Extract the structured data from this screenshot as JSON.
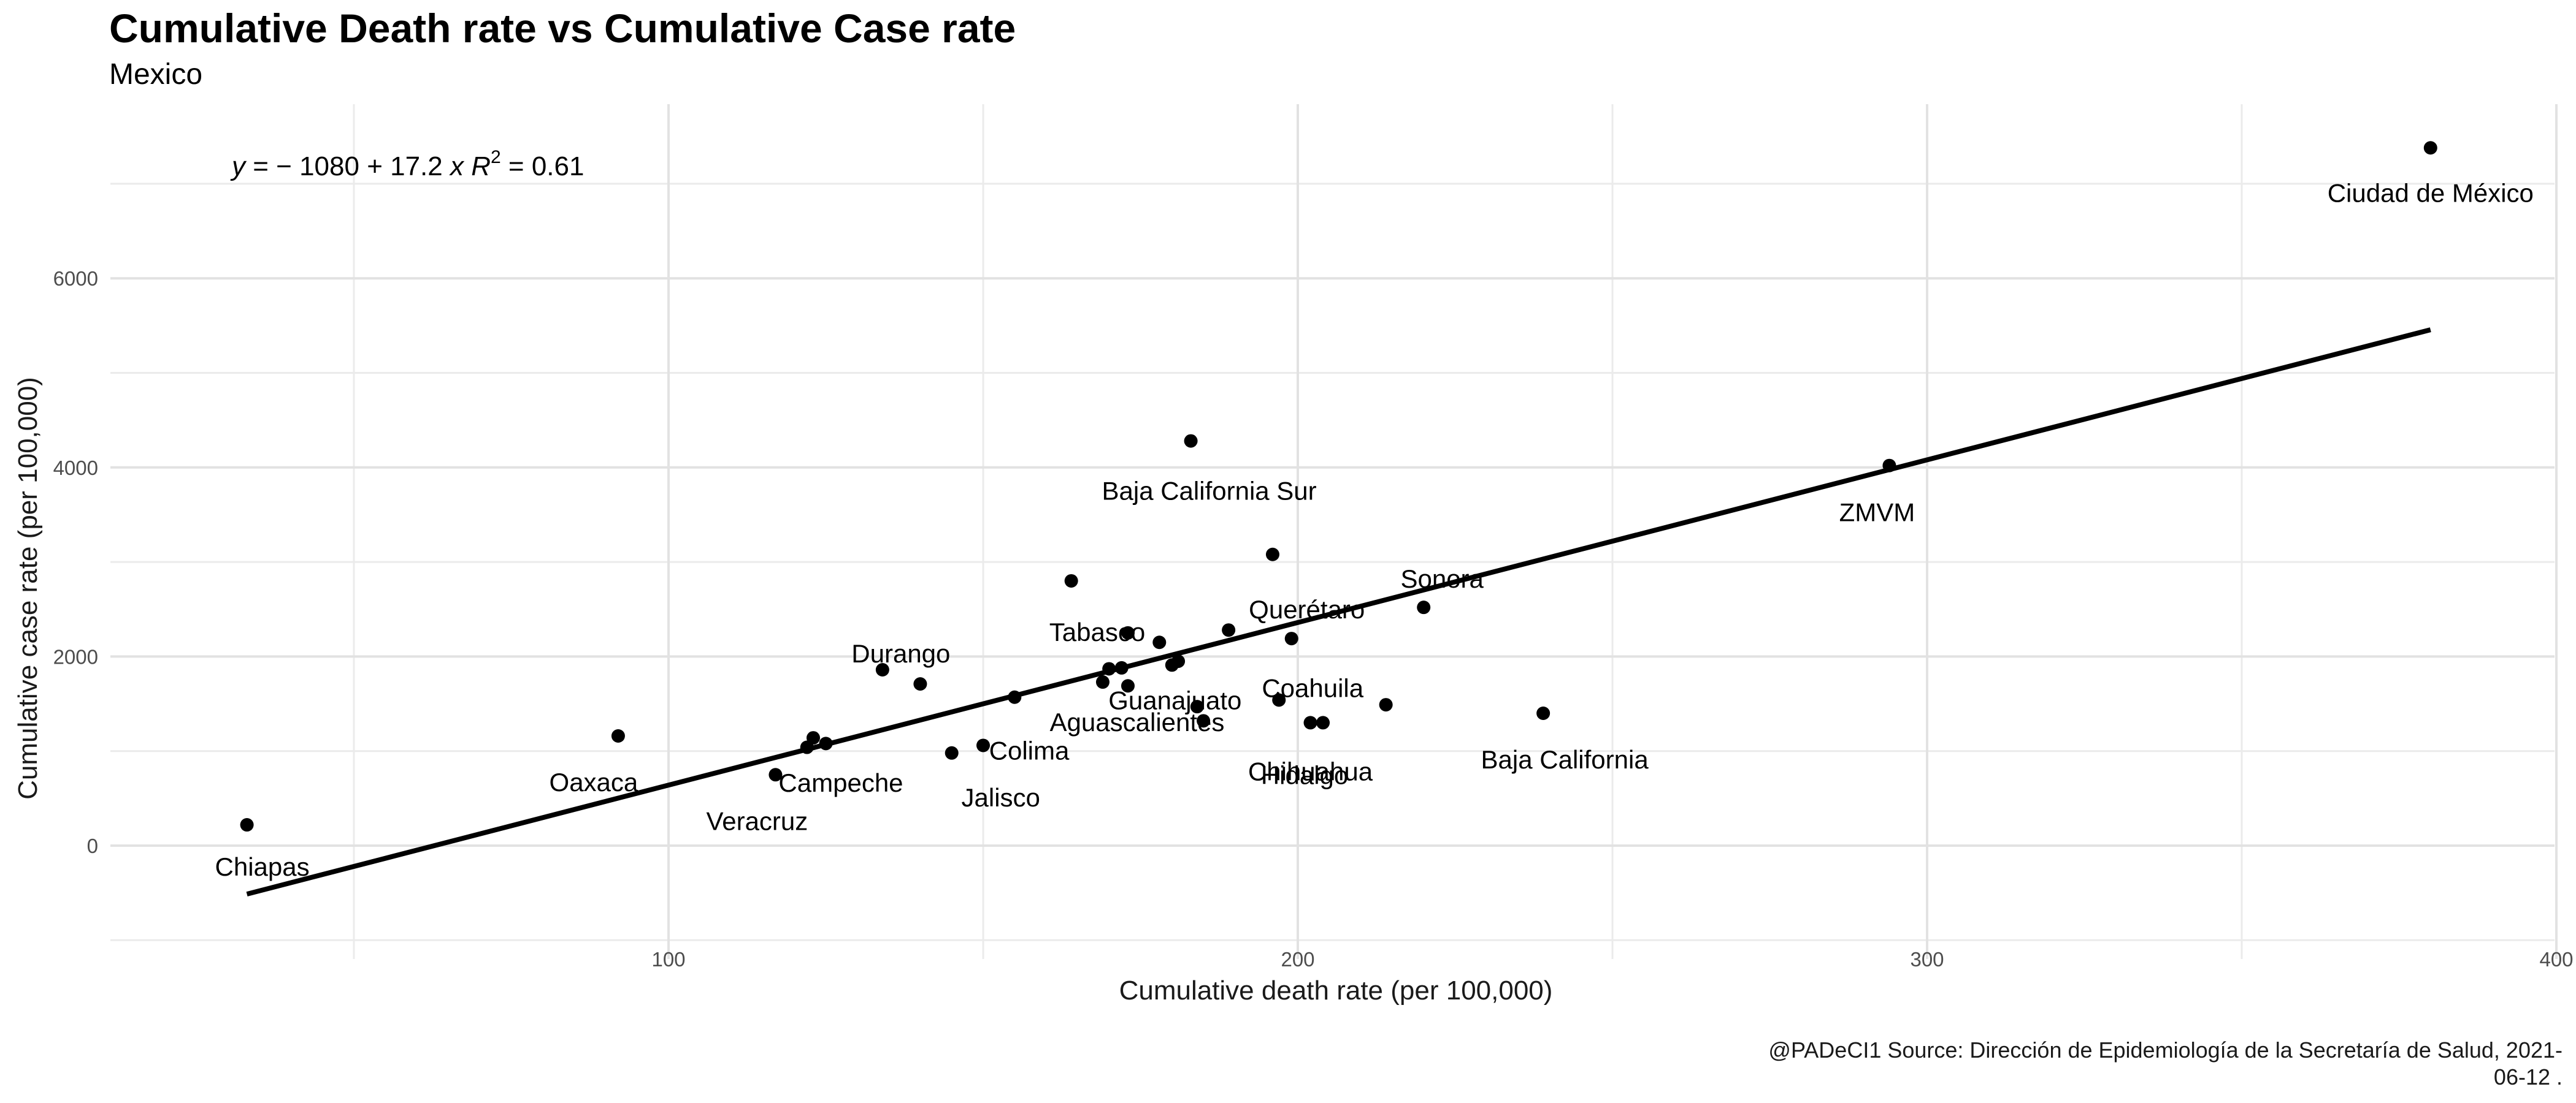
{
  "chart_data": {
    "type": "scatter",
    "title": "Cumulative Death rate vs Cumulative Case rate",
    "subtitle": "Mexico",
    "xlabel": "Cumulative death rate (per 100,000)",
    "ylabel": "Cumulative case rate (per 100,000)",
    "caption": "@PADeCI1  Source: Dirección de Epidemiología de la Secretaría de Salud,  2021-06-12 .",
    "xlim": [
      12,
      405
    ],
    "ylim": [
      -1000,
      7700
    ],
    "x_ticks": [
      100,
      200,
      300,
      400
    ],
    "y_ticks": [
      0,
      2000,
      4000,
      6000
    ],
    "grid": true,
    "point_color": "#000000",
    "fit": {
      "equation_parts": [
        "y",
        " = ",
        "−",
        " 1080 + 17.2 ",
        "x",
        "   ",
        "R",
        "2",
        " = 0.61"
      ],
      "intercept": -1080,
      "slope": 17.2,
      "r_squared": 0.61,
      "x_range": [
        33,
        380
      ]
    },
    "points": [
      {
        "x": 380,
        "y": 7380,
        "label": "Ciudad de México"
      },
      {
        "x": 294,
        "y": 4020,
        "label": "ZMVM"
      },
      {
        "x": 183,
        "y": 4280,
        "label": "Baja California Sur"
      },
      {
        "x": 33,
        "y": 220,
        "label": "Chiapas"
      },
      {
        "x": 92,
        "y": 1160,
        "label": "Oaxaca"
      },
      {
        "x": 117,
        "y": 750,
        "label": "Veracruz"
      },
      {
        "x": 122,
        "y": 1040,
        "label": ""
      },
      {
        "x": 123,
        "y": 1140,
        "label": "Campeche"
      },
      {
        "x": 125,
        "y": 1080,
        "label": ""
      },
      {
        "x": 134,
        "y": 1860,
        "label": "Durango"
      },
      {
        "x": 140,
        "y": 1710,
        "label": ""
      },
      {
        "x": 145,
        "y": 980,
        "label": "Jalisco"
      },
      {
        "x": 150,
        "y": 1060,
        "label": "Colima"
      },
      {
        "x": 155,
        "y": 1570,
        "label": ""
      },
      {
        "x": 164,
        "y": 2800,
        "label": ""
      },
      {
        "x": 169,
        "y": 1730,
        "label": ""
      },
      {
        "x": 170,
        "y": 1870,
        "label": ""
      },
      {
        "x": 172,
        "y": 1880,
        "label": ""
      },
      {
        "x": 173,
        "y": 2250,
        "label": "Tabasco"
      },
      {
        "x": 173,
        "y": 1690,
        "label": "Aguascalientes"
      },
      {
        "x": 178,
        "y": 2150,
        "label": ""
      },
      {
        "x": 180,
        "y": 1910,
        "label": "Guanajuato"
      },
      {
        "x": 181,
        "y": 1950,
        "label": ""
      },
      {
        "x": 184,
        "y": 1470,
        "label": ""
      },
      {
        "x": 185,
        "y": 1320,
        "label": ""
      },
      {
        "x": 189,
        "y": 2280,
        "label": ""
      },
      {
        "x": 196,
        "y": 3080,
        "label": ""
      },
      {
        "x": 197,
        "y": 1540,
        "label": "Coahuila"
      },
      {
        "x": 199,
        "y": 2190,
        "label": "Querétaro"
      },
      {
        "x": 202,
        "y": 1300,
        "label": "Chihuahua"
      },
      {
        "x": 204,
        "y": 1300,
        "label": "Hidalgo"
      },
      {
        "x": 214,
        "y": 1490,
        "label": ""
      },
      {
        "x": 220,
        "y": 2520,
        "label": "Sonora"
      },
      {
        "x": 239,
        "y": 1400,
        "label": "Baja California"
      }
    ]
  }
}
